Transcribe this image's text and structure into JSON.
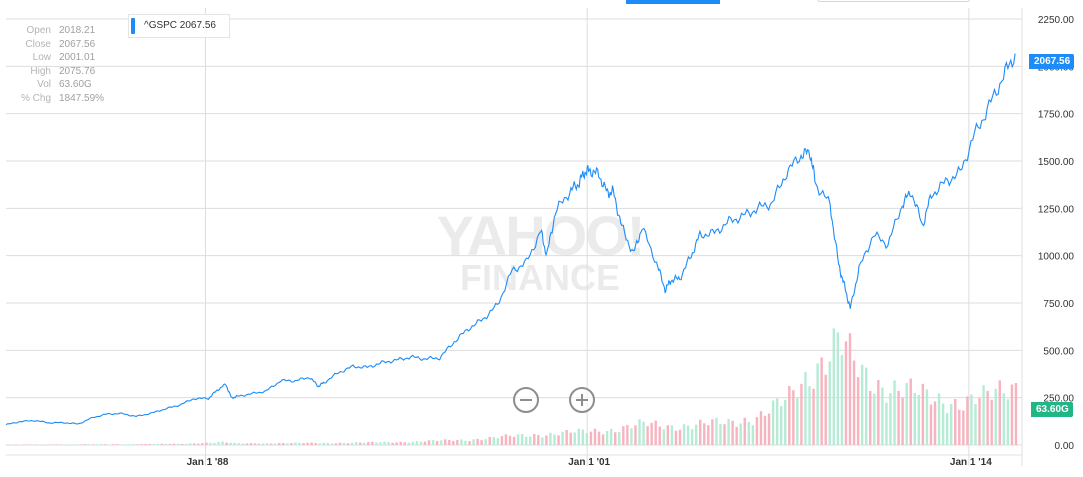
{
  "watermark": {
    "line1": "YAHOO!",
    "line2": "FINANCE"
  },
  "ohlc": [
    {
      "key": "Open",
      "value": "2018.21"
    },
    {
      "key": "Close",
      "value": "2067.56"
    },
    {
      "key": "Low",
      "value": "2001.01"
    },
    {
      "key": "High",
      "value": "2075.76"
    },
    {
      "key": "Vol",
      "value": "63.60G"
    },
    {
      "key": "% Chg",
      "value": "1847.59%"
    }
  ],
  "legend": {
    "label": "^GSPC 2067.56",
    "color": "#1d8cf8"
  },
  "flags": {
    "price": "2067.56",
    "volume": "63.60G"
  },
  "colors": {
    "line": "#1d8cf8",
    "price_flag": "#1d8cf8",
    "volume_flag": "#21b685",
    "vol_up": "#b6ebd6",
    "vol_down": "#f7b3be",
    "grid": "#dddddd",
    "axis_text": "#333333"
  },
  "zoom": {
    "out": "zoom-out",
    "in": "zoom-in"
  },
  "chart_data": {
    "type": "line",
    "title": "",
    "y_ticks": [
      "2250.00",
      "2000.00",
      "1750.00",
      "1500.00",
      "1250.00",
      "1000.00",
      "750.00",
      "500.00",
      "250.00",
      "0.00"
    ],
    "x_ticks": [
      "Jan 1 '88",
      "Jan 1 '01",
      "Jan 1 '14"
    ],
    "ylim": [
      0,
      2250
    ],
    "x_range": [
      1980,
      2015
    ],
    "grid": true,
    "series": [
      {
        "name": "^GSPC",
        "x": [
          1980.0,
          1980.5,
          1981.0,
          1981.5,
          1982.0,
          1982.5,
          1983.0,
          1983.5,
          1984.0,
          1984.5,
          1985.0,
          1985.5,
          1986.0,
          1986.5,
          1987.0,
          1987.3,
          1987.6,
          1987.8,
          1988.0,
          1988.5,
          1989.0,
          1989.5,
          1990.0,
          1990.5,
          1990.8,
          1991.0,
          1991.5,
          1992.0,
          1992.5,
          1993.0,
          1993.5,
          1994.0,
          1994.5,
          1995.0,
          1995.5,
          1996.0,
          1996.5,
          1997.0,
          1997.5,
          1998.0,
          1998.5,
          1998.7,
          1999.0,
          1999.5,
          1999.8,
          2000.0,
          2000.2,
          2000.5,
          2000.8,
          2001.0,
          2001.3,
          2001.7,
          2002.0,
          2002.5,
          2002.8,
          2003.0,
          2003.3,
          2003.7,
          2004.0,
          2004.5,
          2005.0,
          2005.5,
          2006.0,
          2006.5,
          2007.0,
          2007.5,
          2007.8,
          2008.0,
          2008.5,
          2008.8,
          2009.0,
          2009.2,
          2009.5,
          2010.0,
          2010.5,
          2011.0,
          2011.3,
          2011.7,
          2012.0,
          2012.5,
          2013.0,
          2013.5,
          2014.0,
          2014.5,
          2014.9
        ],
        "y": [
          107,
          124,
          129,
          117,
          118,
          111,
          145,
          164,
          166,
          151,
          167,
          190,
          211,
          245,
          246,
          289,
          321,
          248,
          257,
          271,
          285,
          340,
          339,
          358,
          310,
          330,
          382,
          415,
          410,
          435,
          448,
          465,
          455,
          460,
          545,
          615,
          665,
          740,
          920,
          965,
          1130,
          1000,
          1230,
          1340,
          1380,
          1440,
          1450,
          1430,
          1330,
          1340,
          1150,
          1010,
          1150,
          960,
          820,
          870,
          880,
          1000,
          1110,
          1120,
          1180,
          1210,
          1250,
          1280,
          1440,
          1530,
          1550,
          1380,
          1270,
          950,
          840,
          720,
          930,
          1110,
          1060,
          1270,
          1340,
          1160,
          1320,
          1390,
          1440,
          1640,
          1790,
          1950,
          2067
        ]
      }
    ],
    "volume": {
      "name": "Volume",
      "x": [
        1980,
        1982,
        1984,
        1986,
        1987.5,
        1988,
        1990,
        1992,
        1994,
        1996,
        1998,
        1999,
        2000,
        2001,
        2002,
        2003,
        2004,
        2005,
        2006,
        2007,
        2007.5,
        2008,
        2008.8,
        2009.5,
        2010,
        2011,
        2012,
        2013,
        2014,
        2014.9
      ],
      "values": [
        2,
        3,
        4,
        6,
        15,
        8,
        10,
        12,
        17,
        28,
        52,
        60,
        70,
        82,
        108,
        100,
        108,
        118,
        150,
        230,
        320,
        420,
        550,
        380,
        330,
        300,
        240,
        230,
        250,
        318
      ]
    }
  }
}
